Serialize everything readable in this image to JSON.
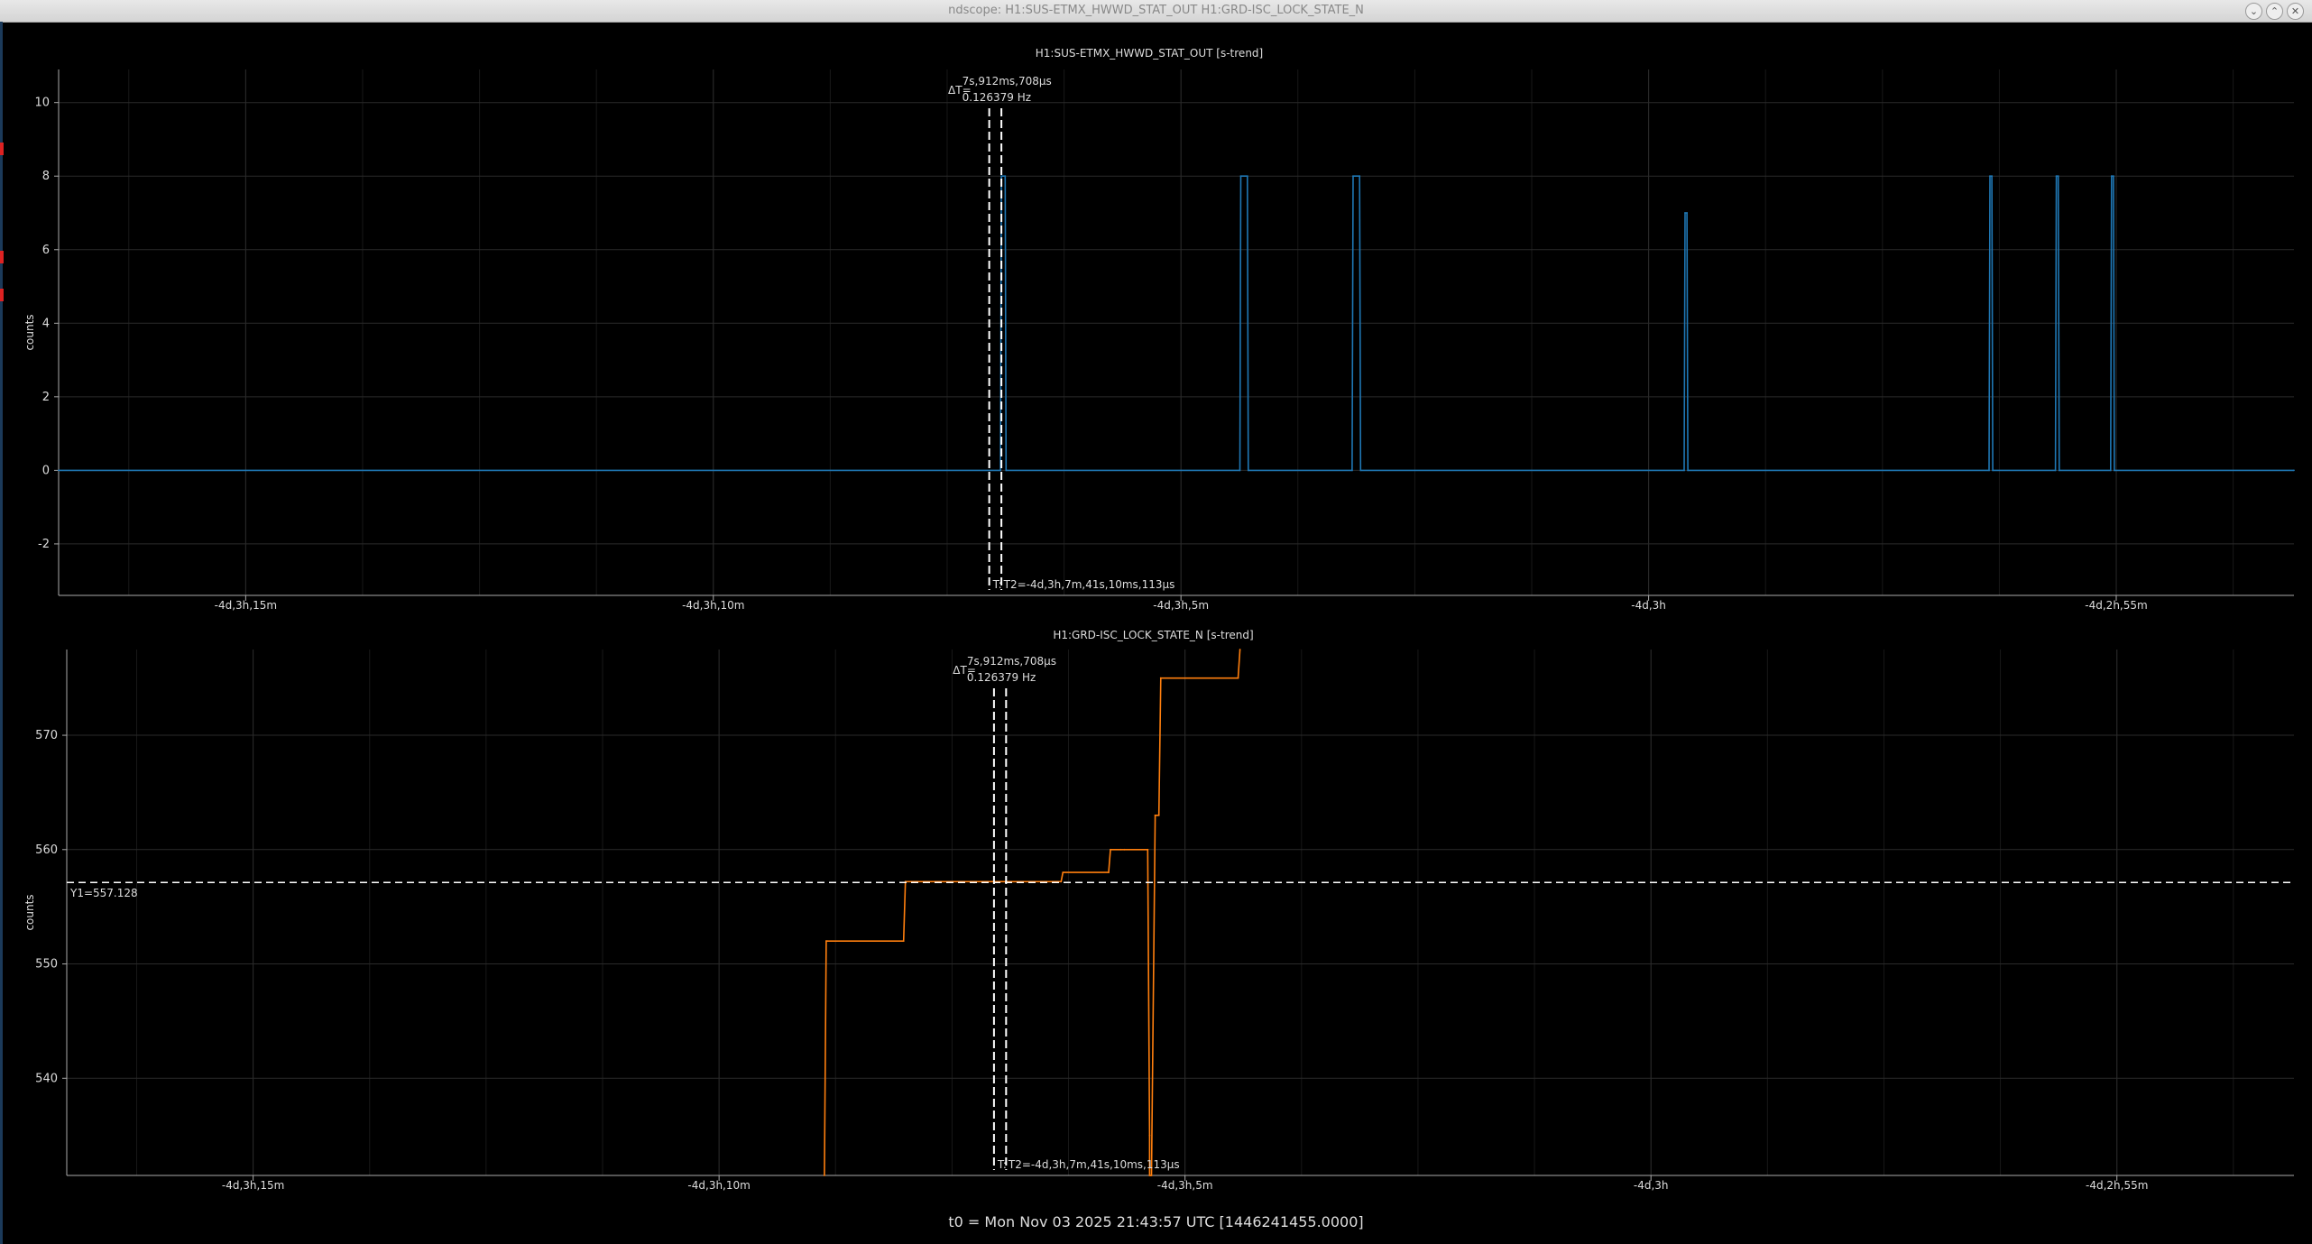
{
  "window": {
    "title": "ndscope: H1:SUS-ETMX_HWWD_STAT_OUT H1:GRD-ISC_LOCK_STATE_N",
    "buttons": [
      "chevron-down",
      "chevron-up",
      "close"
    ]
  },
  "footer": "t0 = Mon Nov 03 2025 21:43:57 UTC [1446241455.0000]",
  "colors": {
    "background": "#000000",
    "series1": "#1f77b4",
    "series2": "#ff7f0e",
    "cursor": "#ffffff",
    "grid": "#2a2a2a"
  },
  "cursors": {
    "delta_label": "ΔT=",
    "delta_value": "7s,912ms,708μs",
    "frequency": "0.126379 Hz",
    "t_label": "T:",
    "t2_label": "T2=-4d,3h,7m,41s,10ms,113μs",
    "y1_label": "Y1=557.128"
  },
  "chart_data": [
    {
      "type": "line",
      "title": "H1:SUS-ETMX_HWWD_STAT_OUT [s-trend]",
      "ylabel": "counts",
      "xlim": [
        -17.0,
        6.9
      ],
      "ylim": [
        -3.4,
        10.9
      ],
      "xticks": [
        -15,
        -10,
        -5,
        0,
        5
      ],
      "xtick_labels": [
        "-4d,3h,15m",
        "-4d,3h,10m",
        "-4d,3h,5m",
        "-4d,3h",
        "-4d,2h,55m"
      ],
      "yticks": [
        -2,
        0,
        2,
        4,
        6,
        8,
        10
      ],
      "grid": true,
      "series": [
        {
          "color": "#1f77b4",
          "x": [
            -17.0,
            -6.93,
            -6.92,
            -6.88,
            -6.87,
            -4.37,
            -4.36,
            -4.29,
            -4.28,
            -3.17,
            -3.16,
            -3.09,
            -3.08,
            0.38,
            0.39,
            0.41,
            0.42,
            3.64,
            3.65,
            3.67,
            3.68,
            4.35,
            4.36,
            4.38,
            4.39,
            4.94,
            4.95,
            4.97,
            4.98,
            6.9
          ],
          "values": [
            0,
            0,
            8,
            8,
            0,
            0,
            8,
            8,
            0,
            0,
            8,
            8,
            0,
            0,
            7,
            7,
            0,
            0,
            8,
            8,
            0,
            0,
            8,
            8,
            0,
            0,
            8,
            8,
            0,
            0
          ]
        }
      ],
      "cursor_x": [
        -7.05,
        -6.92
      ]
    },
    {
      "type": "line",
      "title": "H1:GRD-ISC_LOCK_STATE_N [s-trend]",
      "ylabel": "counts",
      "xlim": [
        -17.0,
        6.9
      ],
      "ylim": [
        531.5,
        577.5
      ],
      "xticks": [
        -15,
        -10,
        -5,
        0,
        5
      ],
      "xtick_labels": [
        "-4d,3h,15m",
        "-4d,3h,10m",
        "-4d,3h,5m",
        "-4d,3h",
        "-4d,2h,55m"
      ],
      "yticks": [
        540,
        550,
        560,
        570
      ],
      "grid": true,
      "series": [
        {
          "color": "#ff7f0e",
          "x": [
            -8.87,
            -8.85,
            -8.84,
            -8.02,
            -8.0,
            -6.33,
            -6.31,
            -5.82,
            -5.8,
            -5.69,
            -5.65,
            -5.4,
            -5.38,
            -5.38,
            -5.37,
            -5.36,
            -5.32,
            -5.28,
            -5.26,
            -4.43,
            -4.41
          ],
          "values": [
            531.5,
            552,
            552,
            552,
            557.2,
            557.2,
            558,
            558,
            560,
            560,
            560,
            560,
            535,
            531.5,
            531.5,
            531.5,
            563,
            563,
            575,
            575,
            577.5
          ]
        }
      ],
      "cursor_x": [
        -7.05,
        -6.92
      ],
      "cursor_y": 557.128
    }
  ]
}
